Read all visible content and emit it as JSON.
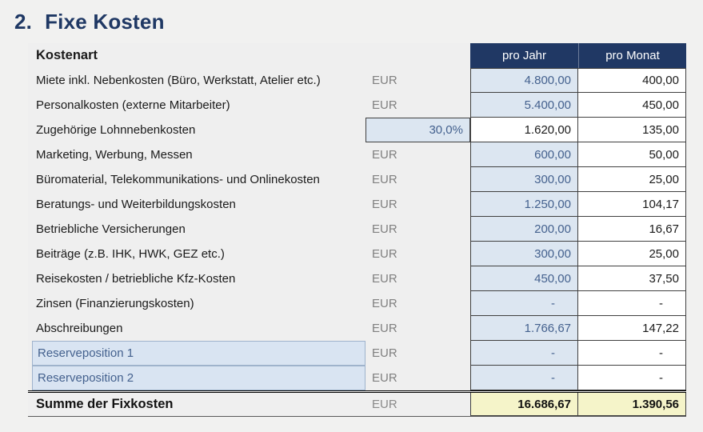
{
  "title": {
    "number": "2.",
    "text": "Fixe Kosten"
  },
  "table": {
    "kostenart_header": "Kostenart",
    "col_headers": [
      "pro Jahr",
      "pro Monat"
    ],
    "rows": [
      {
        "label": "Miete inkl. Nebenkosten (Büro, Werkstatt, Atelier etc.)",
        "unit": "EUR",
        "jahr": "4.800,00",
        "monat": "400,00",
        "type": "input"
      },
      {
        "label": "Personalkosten (externe Mitarbeiter)",
        "unit": "EUR",
        "jahr": "5.400,00",
        "monat": "450,00",
        "type": "input"
      },
      {
        "label": "Zugehörige Lohnnebenkosten",
        "unit": "30,0%",
        "jahr": "1.620,00",
        "monat": "135,00",
        "type": "percent"
      },
      {
        "label": "Marketing, Werbung, Messen",
        "unit": "EUR",
        "jahr": "600,00",
        "monat": "50,00",
        "type": "input"
      },
      {
        "label": "Büromaterial, Telekommunikations- und Onlinekosten",
        "unit": "EUR",
        "jahr": "300,00",
        "monat": "25,00",
        "type": "input"
      },
      {
        "label": "Beratungs- und Weiterbildungskosten",
        "unit": "EUR",
        "jahr": "1.250,00",
        "monat": "104,17",
        "type": "input"
      },
      {
        "label": "Betriebliche Versicherungen",
        "unit": "EUR",
        "jahr": "200,00",
        "monat": "16,67",
        "type": "input"
      },
      {
        "label": "Beiträge (z.B. IHK, HWK, GEZ etc.)",
        "unit": "EUR",
        "jahr": "300,00",
        "monat": "25,00",
        "type": "input"
      },
      {
        "label": "Reisekosten / betriebliche Kfz-Kosten",
        "unit": "EUR",
        "jahr": "450,00",
        "monat": "37,50",
        "type": "input"
      },
      {
        "label": "Zinsen (Finanzierungskosten)",
        "unit": "EUR",
        "jahr": "-",
        "monat": "-",
        "type": "input"
      },
      {
        "label": "Abschreibungen",
        "unit": "EUR",
        "jahr": "1.766,67",
        "monat": "147,22",
        "type": "input"
      },
      {
        "label": "Reserveposition 1",
        "unit": "EUR",
        "jahr": "-",
        "monat": "-",
        "type": "reserve"
      },
      {
        "label": "Reserveposition 2",
        "unit": "EUR",
        "jahr": "-",
        "monat": "-",
        "type": "reserve"
      }
    ],
    "sum": {
      "label": "Summe der Fixkosten",
      "unit": "EUR",
      "jahr": "16.686,67",
      "monat": "1.390,56"
    }
  },
  "colors": {
    "accent_navy": "#203864",
    "title_navy": "#1f3864",
    "input_blue_bg": "#dce6f1",
    "value_blue_text": "#44618e",
    "sum_yellow_bg": "#f5f4c9",
    "eur_gray": "#808080"
  }
}
